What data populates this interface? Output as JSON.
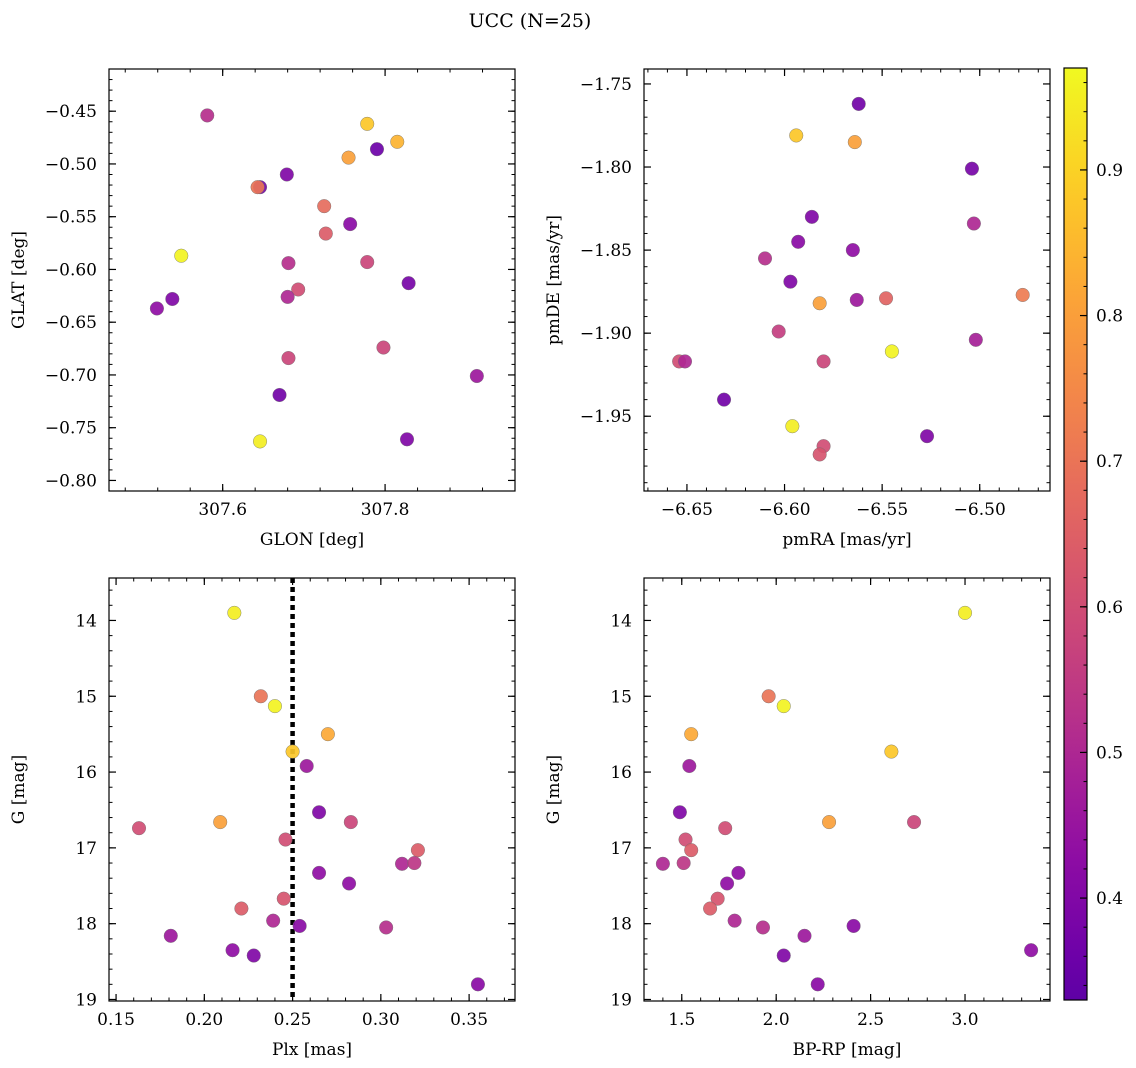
{
  "figure": {
    "suptitle": "UCC (N=25)"
  },
  "colormap": {
    "name": "plasma",
    "vmin": 0.33,
    "vmax": 0.97,
    "ticks": [
      0.4,
      0.5,
      0.6,
      0.7,
      0.8,
      0.9
    ],
    "tick_labels": [
      "0.4",
      "0.5",
      "0.6",
      "0.7",
      "0.8",
      "0.9"
    ]
  },
  "chart_data": [
    {
      "type": "scatter",
      "panel": "top-left",
      "xlabel": "GLON [deg]",
      "ylabel": "GLAT [deg]",
      "xlim": [
        307.46,
        307.96
      ],
      "ylim": [
        -0.81,
        -0.41
      ],
      "xticks": [
        307.6,
        307.8
      ],
      "xtick_labels": [
        "307.6",
        "307.8"
      ],
      "yticks": [
        -0.45,
        -0.5,
        -0.55,
        -0.6,
        -0.65,
        -0.7,
        -0.75,
        -0.8
      ],
      "ytick_labels": [
        "−0.45",
        "−0.50",
        "−0.55",
        "−0.60",
        "−0.65",
        "−0.70",
        "−0.75",
        "−0.80"
      ],
      "points": [
        {
          "x": 307.581,
          "y": -0.454,
          "c": 0.52
        },
        {
          "x": 307.778,
          "y": -0.462,
          "c": 0.88
        },
        {
          "x": 307.815,
          "y": -0.479,
          "c": 0.84
        },
        {
          "x": 307.79,
          "y": -0.486,
          "c": 0.36
        },
        {
          "x": 307.755,
          "y": -0.494,
          "c": 0.8
        },
        {
          "x": 307.679,
          "y": -0.51,
          "c": 0.4
        },
        {
          "x": 307.646,
          "y": -0.522,
          "c": 0.38
        },
        {
          "x": 307.643,
          "y": -0.522,
          "c": 0.7
        },
        {
          "x": 307.725,
          "y": -0.54,
          "c": 0.68
        },
        {
          "x": 307.757,
          "y": -0.557,
          "c": 0.42
        },
        {
          "x": 307.727,
          "y": -0.566,
          "c": 0.64
        },
        {
          "x": 307.549,
          "y": -0.587,
          "c": 0.96
        },
        {
          "x": 307.681,
          "y": -0.594,
          "c": 0.52
        },
        {
          "x": 307.778,
          "y": -0.593,
          "c": 0.58
        },
        {
          "x": 307.693,
          "y": -0.619,
          "c": 0.6
        },
        {
          "x": 307.829,
          "y": -0.613,
          "c": 0.38
        },
        {
          "x": 307.538,
          "y": -0.628,
          "c": 0.4
        },
        {
          "x": 307.68,
          "y": -0.626,
          "c": 0.5
        },
        {
          "x": 307.519,
          "y": -0.637,
          "c": 0.43
        },
        {
          "x": 307.798,
          "y": -0.674,
          "c": 0.58
        },
        {
          "x": 307.681,
          "y": -0.684,
          "c": 0.58
        },
        {
          "x": 307.913,
          "y": -0.701,
          "c": 0.46
        },
        {
          "x": 307.67,
          "y": -0.719,
          "c": 0.37
        },
        {
          "x": 307.827,
          "y": -0.761,
          "c": 0.4
        },
        {
          "x": 307.646,
          "y": -0.763,
          "c": 0.95
        }
      ]
    },
    {
      "type": "scatter",
      "panel": "top-right",
      "xlabel": "pmRA [mas/yr]",
      "ylabel": "pmDE [mas/yr]",
      "xlim": [
        -6.672,
        -6.464
      ],
      "ylim": [
        -1.995,
        -1.741
      ],
      "xticks": [
        -6.65,
        -6.6,
        -6.55,
        -6.5
      ],
      "xtick_labels": [
        "−6.65",
        "−6.60",
        "−6.55",
        "−6.50"
      ],
      "yticks": [
        -1.75,
        -1.8,
        -1.85,
        -1.9,
        -1.95
      ],
      "ytick_labels": [
        "−1.75",
        "−1.80",
        "−1.85",
        "−1.90",
        "−1.95"
      ],
      "points": [
        {
          "x": -6.562,
          "y": -1.762,
          "c": 0.37
        },
        {
          "x": -6.594,
          "y": -1.781,
          "c": 0.88
        },
        {
          "x": -6.564,
          "y": -1.785,
          "c": 0.8
        },
        {
          "x": -6.504,
          "y": -1.801,
          "c": 0.38
        },
        {
          "x": -6.586,
          "y": -1.83,
          "c": 0.4
        },
        {
          "x": -6.503,
          "y": -1.834,
          "c": 0.5
        },
        {
          "x": -6.593,
          "y": -1.845,
          "c": 0.42
        },
        {
          "x": -6.565,
          "y": -1.85,
          "c": 0.43
        },
        {
          "x": -6.61,
          "y": -1.855,
          "c": 0.52
        },
        {
          "x": -6.597,
          "y": -1.869,
          "c": 0.4
        },
        {
          "x": -6.478,
          "y": -1.877,
          "c": 0.72
        },
        {
          "x": -6.548,
          "y": -1.879,
          "c": 0.66
        },
        {
          "x": -6.582,
          "y": -1.882,
          "c": 0.8
        },
        {
          "x": -6.563,
          "y": -1.88,
          "c": 0.46
        },
        {
          "x": -6.603,
          "y": -1.899,
          "c": 0.56
        },
        {
          "x": -6.502,
          "y": -1.904,
          "c": 0.48
        },
        {
          "x": -6.545,
          "y": -1.911,
          "c": 0.96
        },
        {
          "x": -6.654,
          "y": -1.917,
          "c": 0.6
        },
        {
          "x": -6.651,
          "y": -1.917,
          "c": 0.5
        },
        {
          "x": -6.58,
          "y": -1.917,
          "c": 0.58
        },
        {
          "x": -6.631,
          "y": -1.94,
          "c": 0.37
        },
        {
          "x": -6.596,
          "y": -1.956,
          "c": 0.95
        },
        {
          "x": -6.527,
          "y": -1.962,
          "c": 0.4
        },
        {
          "x": -6.58,
          "y": -1.968,
          "c": 0.6
        },
        {
          "x": -6.582,
          "y": -1.973,
          "c": 0.62
        }
      ]
    },
    {
      "type": "scatter",
      "panel": "bottom-left",
      "xlabel": "Plx [mas]",
      "ylabel": "G [mag]",
      "xlim": [
        0.146,
        0.376
      ],
      "ylim": [
        19.02,
        13.44
      ],
      "y_inverted": true,
      "xticks": [
        0.15,
        0.2,
        0.25,
        0.3,
        0.35
      ],
      "xtick_labels": [
        "0.15",
        "0.20",
        "0.25",
        "0.30",
        "0.35"
      ],
      "yticks": [
        14,
        15,
        16,
        17,
        18,
        19
      ],
      "ytick_labels": [
        "14",
        "15",
        "16",
        "17",
        "18",
        "19"
      ],
      "vline": {
        "x": 0.25,
        "style": "dotted",
        "color": "#000000"
      },
      "points": [
        {
          "x": 0.217,
          "y": 13.9,
          "c": 0.95
        },
        {
          "x": 0.232,
          "y": 15.0,
          "c": 0.7
        },
        {
          "x": 0.24,
          "y": 15.13,
          "c": 0.96
        },
        {
          "x": 0.27,
          "y": 15.5,
          "c": 0.82
        },
        {
          "x": 0.25,
          "y": 15.73,
          "c": 0.88
        },
        {
          "x": 0.258,
          "y": 15.92,
          "c": 0.46
        },
        {
          "x": 0.265,
          "y": 16.53,
          "c": 0.4
        },
        {
          "x": 0.163,
          "y": 16.74,
          "c": 0.6
        },
        {
          "x": 0.209,
          "y": 16.66,
          "c": 0.8
        },
        {
          "x": 0.283,
          "y": 16.66,
          "c": 0.58
        },
        {
          "x": 0.321,
          "y": 17.03,
          "c": 0.64
        },
        {
          "x": 0.246,
          "y": 16.89,
          "c": 0.6
        },
        {
          "x": 0.312,
          "y": 17.21,
          "c": 0.5
        },
        {
          "x": 0.319,
          "y": 17.2,
          "c": 0.54
        },
        {
          "x": 0.265,
          "y": 17.33,
          "c": 0.43
        },
        {
          "x": 0.282,
          "y": 17.47,
          "c": 0.43
        },
        {
          "x": 0.245,
          "y": 17.67,
          "c": 0.62
        },
        {
          "x": 0.221,
          "y": 17.8,
          "c": 0.64
        },
        {
          "x": 0.239,
          "y": 17.96,
          "c": 0.5
        },
        {
          "x": 0.254,
          "y": 18.03,
          "c": 0.42
        },
        {
          "x": 0.303,
          "y": 18.05,
          "c": 0.52
        },
        {
          "x": 0.181,
          "y": 18.16,
          "c": 0.46
        },
        {
          "x": 0.216,
          "y": 18.35,
          "c": 0.43
        },
        {
          "x": 0.228,
          "y": 18.42,
          "c": 0.4
        },
        {
          "x": 0.355,
          "y": 18.8,
          "c": 0.42
        }
      ]
    },
    {
      "type": "scatter",
      "panel": "bottom-right",
      "xlabel": "BP-RP [mag]",
      "ylabel": "G [mag]",
      "xlim": [
        1.3,
        3.45
      ],
      "ylim": [
        19.02,
        13.44
      ],
      "y_inverted": true,
      "xticks": [
        1.5,
        2.0,
        2.5,
        3.0
      ],
      "xtick_labels": [
        "1.5",
        "2.0",
        "2.5",
        "3.0"
      ],
      "yticks": [
        14,
        15,
        16,
        17,
        18,
        19
      ],
      "ytick_labels": [
        "14",
        "15",
        "16",
        "17",
        "18",
        "19"
      ],
      "points": [
        {
          "x": 3.0,
          "y": 13.9,
          "c": 0.95
        },
        {
          "x": 1.96,
          "y": 15.0,
          "c": 0.7
        },
        {
          "x": 2.04,
          "y": 15.13,
          "c": 0.96
        },
        {
          "x": 1.55,
          "y": 15.5,
          "c": 0.82
        },
        {
          "x": 2.61,
          "y": 15.73,
          "c": 0.88
        },
        {
          "x": 1.54,
          "y": 15.92,
          "c": 0.46
        },
        {
          "x": 1.49,
          "y": 16.53,
          "c": 0.4
        },
        {
          "x": 1.73,
          "y": 16.74,
          "c": 0.6
        },
        {
          "x": 2.28,
          "y": 16.66,
          "c": 0.8
        },
        {
          "x": 2.73,
          "y": 16.66,
          "c": 0.58
        },
        {
          "x": 1.52,
          "y": 16.89,
          "c": 0.6
        },
        {
          "x": 1.55,
          "y": 17.03,
          "c": 0.64
        },
        {
          "x": 1.4,
          "y": 17.21,
          "c": 0.5
        },
        {
          "x": 1.51,
          "y": 17.2,
          "c": 0.54
        },
        {
          "x": 1.8,
          "y": 17.33,
          "c": 0.43
        },
        {
          "x": 1.74,
          "y": 17.47,
          "c": 0.43
        },
        {
          "x": 1.69,
          "y": 17.67,
          "c": 0.62
        },
        {
          "x": 1.65,
          "y": 17.8,
          "c": 0.64
        },
        {
          "x": 1.78,
          "y": 17.96,
          "c": 0.5
        },
        {
          "x": 1.93,
          "y": 18.05,
          "c": 0.52
        },
        {
          "x": 2.41,
          "y": 18.03,
          "c": 0.42
        },
        {
          "x": 2.15,
          "y": 18.16,
          "c": 0.46
        },
        {
          "x": 3.35,
          "y": 18.35,
          "c": 0.43
        },
        {
          "x": 2.04,
          "y": 18.42,
          "c": 0.4
        },
        {
          "x": 2.22,
          "y": 18.8,
          "c": 0.42
        }
      ]
    }
  ]
}
